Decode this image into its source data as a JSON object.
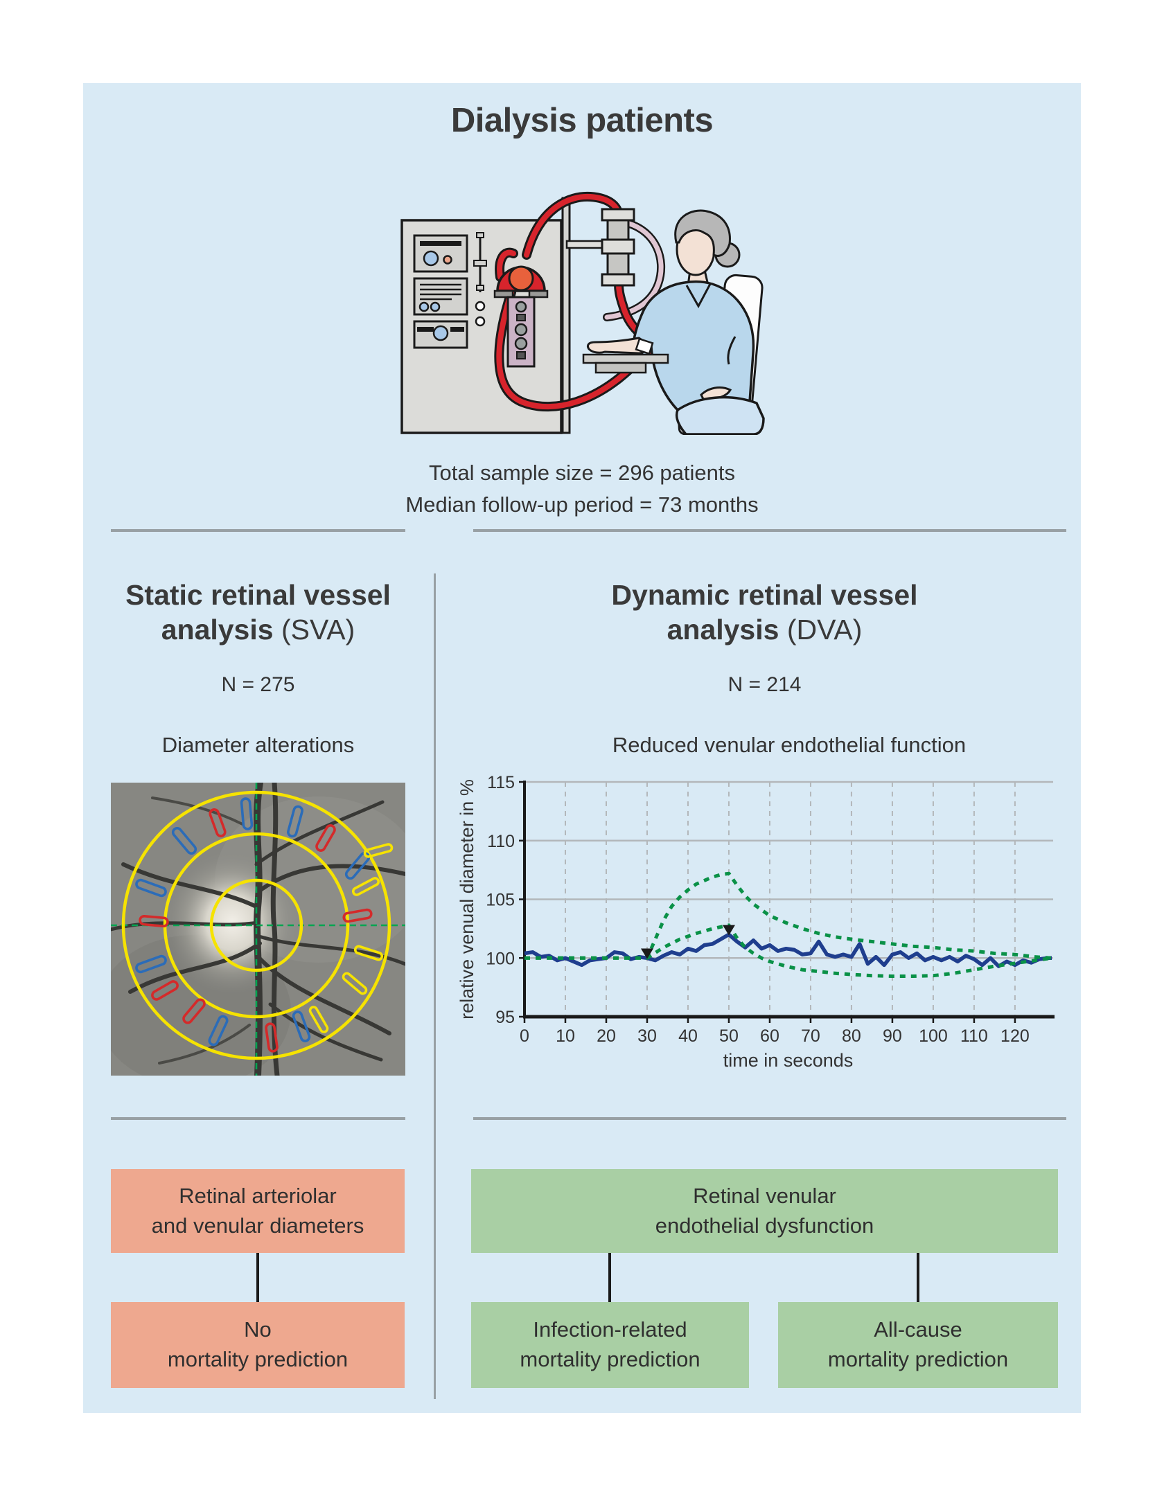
{
  "header": {
    "title": "Dialysis patients"
  },
  "summary": {
    "line1": "Total sample size = 296 patients",
    "line2": "Median follow-up period = 73 months"
  },
  "sva": {
    "heading_line1": "Static retinal vessel",
    "heading_line2_bold": "analysis",
    "heading_line2_suffix": " (SVA)",
    "n_label": "N = 275",
    "section_label": "Diameter alterations",
    "outcome_box": {
      "line1": "Retinal arteriolar",
      "line2": "and venular diameters"
    },
    "result_box": {
      "line1": "No",
      "line2": "mortality prediction"
    }
  },
  "dva": {
    "heading_line1": "Dynamic retinal vessel",
    "heading_line2_bold": "analysis",
    "heading_line2_suffix": " (DVA)",
    "n_label": "N = 214",
    "outcome_box": {
      "line1": "Retinal venular",
      "line2": "endothelial dysfunction"
    },
    "result_box_left": {
      "line1": "Infection-related",
      "line2": "mortality prediction"
    },
    "result_box_right": {
      "line1": "All-cause",
      "line2": "mortality prediction"
    }
  },
  "chart_data": {
    "type": "line",
    "title": "Reduced venular endothelial function",
    "xlabel": "time in seconds",
    "ylabel": "relative venual diameter in %",
    "xlim": [
      0,
      129
    ],
    "ylim": [
      95,
      115
    ],
    "xticks": [
      0,
      10,
      20,
      30,
      40,
      50,
      60,
      70,
      80,
      90,
      100,
      110,
      120
    ],
    "yticks": [
      95,
      100,
      105,
      110,
      115
    ],
    "grid": {
      "vertical": "dashed",
      "horizontal": "solid",
      "legend": "none"
    },
    "series": [
      {
        "name": "measured relative venular diameter",
        "color": "#1f3e8e",
        "style": "solid",
        "x": [
          0,
          2,
          4,
          6,
          8,
          10,
          12,
          14,
          16,
          18,
          20,
          22,
          24,
          26,
          28,
          30,
          32,
          34,
          36,
          38,
          40,
          42,
          44,
          46,
          48,
          50,
          52,
          54,
          56,
          58,
          60,
          62,
          64,
          66,
          68,
          70,
          72,
          74,
          76,
          78,
          80,
          82,
          84,
          86,
          88,
          90,
          92,
          94,
          96,
          98,
          100,
          102,
          104,
          106,
          108,
          110,
          112,
          114,
          116,
          118,
          120,
          122,
          124,
          126,
          128,
          129
        ],
        "y": [
          100.4,
          100.5,
          100.1,
          100.2,
          99.8,
          100.0,
          99.7,
          99.4,
          99.8,
          99.9,
          100.0,
          100.5,
          100.4,
          99.9,
          100.1,
          100.0,
          99.8,
          100.2,
          100.5,
          100.3,
          100.8,
          100.6,
          101.1,
          101.2,
          101.6,
          102.0,
          101.4,
          100.9,
          101.5,
          100.8,
          101.1,
          100.6,
          100.8,
          100.7,
          100.3,
          100.4,
          101.4,
          100.3,
          100.1,
          100.3,
          100.1,
          101.2,
          99.5,
          100.1,
          99.4,
          100.3,
          100.5,
          100.0,
          100.4,
          99.8,
          100.1,
          99.8,
          100.1,
          99.7,
          100.2,
          99.9,
          99.4,
          100.0,
          99.3,
          99.7,
          99.4,
          99.8,
          99.6,
          99.9,
          100.0,
          100.0
        ]
      },
      {
        "name": "reference response envelope upper bound",
        "color": "#0a9147",
        "style": "dotted",
        "x": [
          0,
          30,
          32,
          34,
          36,
          38,
          40,
          42,
          44,
          46,
          48,
          50,
          52,
          54,
          56,
          58,
          60,
          64,
          68,
          72,
          76,
          80,
          85,
          90,
          95,
          100,
          105,
          110,
          115,
          120,
          125,
          129
        ],
        "y": [
          100,
          100,
          101.6,
          103.2,
          104.4,
          105.2,
          105.8,
          106.3,
          106.6,
          106.9,
          107.1,
          107.2,
          106.2,
          105.3,
          104.6,
          104.1,
          103.6,
          103.0,
          102.5,
          102.1,
          101.8,
          101.6,
          101.4,
          101.2,
          101.0,
          100.9,
          100.7,
          100.6,
          100.4,
          100.3,
          100.1,
          100.0
        ]
      },
      {
        "name": "reference response envelope lower bound",
        "color": "#0a9147",
        "style": "dotted",
        "x": [
          0,
          30,
          34,
          38,
          42,
          46,
          50,
          52,
          54,
          56,
          58,
          60,
          64,
          68,
          72,
          76,
          80,
          85,
          90,
          95,
          100,
          105,
          110,
          115,
          120,
          125,
          129
        ],
        "y": [
          100,
          100,
          100.9,
          101.6,
          102.1,
          102.5,
          102.8,
          101.7,
          100.9,
          100.4,
          100.0,
          99.7,
          99.3,
          99.0,
          98.85,
          98.7,
          98.6,
          98.5,
          98.45,
          98.45,
          98.5,
          98.7,
          99.0,
          99.3,
          99.55,
          99.8,
          100.0
        ]
      }
    ],
    "markers": [
      {
        "x": 30,
        "y": 100.1,
        "shape": "triangle-down",
        "color": "#1a1a1a"
      },
      {
        "x": 50,
        "y": 102.1,
        "shape": "triangle-down",
        "color": "#1a1a1a"
      }
    ]
  },
  "colors": {
    "page_bg": "#ffffff",
    "panel_bg": "#d9eaf5",
    "heading_text": "#3a3a3a",
    "body_text": "#333333",
    "divider": "#98a0a4",
    "connector": "#1a1a1a",
    "salmon_box": "#eea88f",
    "green_box": "#a9cfa4",
    "chart_blue": "#1f3e8e",
    "chart_green": "#0a9147",
    "grid_gray": "#b3b7ba",
    "axis_black": "#1a1a1a",
    "fundus_ring_yellow": "#f6e300",
    "fundus_cross_green": "#00a551",
    "vessel_mark_blue": "#2b6cb8",
    "vessel_mark_red": "#d42a2a",
    "tube_red": "#d7242c",
    "machine_gray": "#dcdcd9",
    "scrub_blue": "#b9d7ec",
    "skin": "#f3e1d5"
  }
}
